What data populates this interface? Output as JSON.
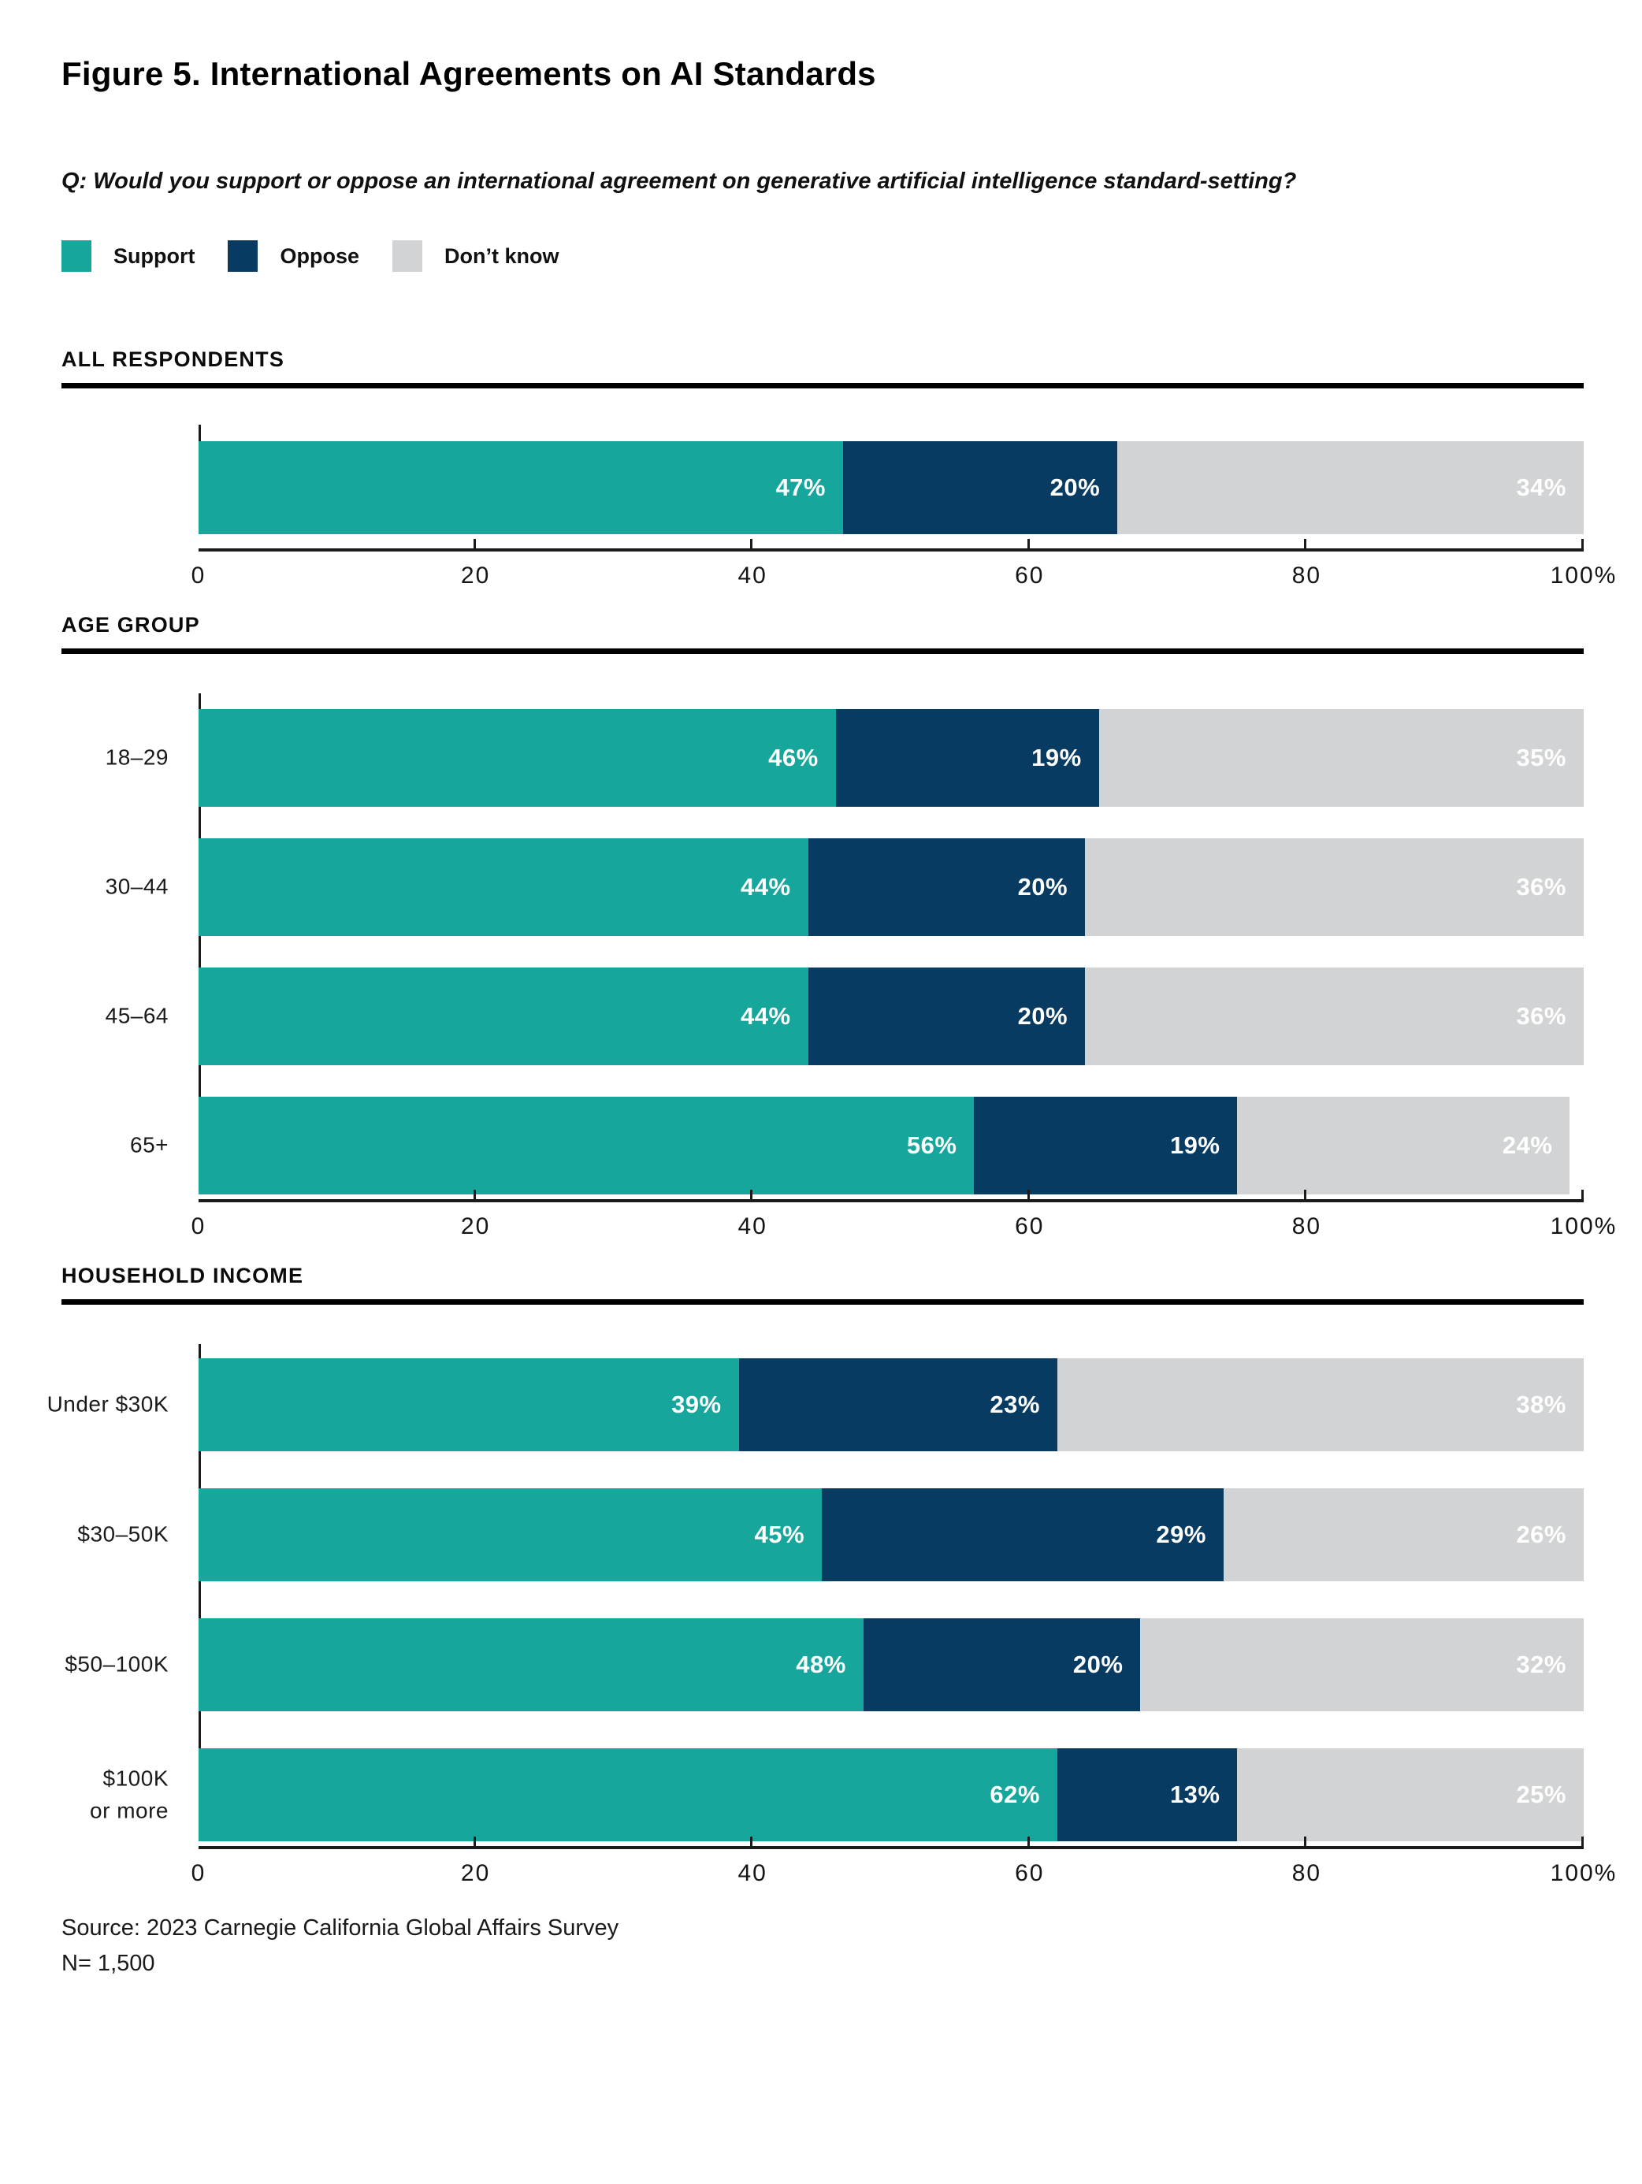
{
  "title": "Figure 5. International Agreements on AI Standards",
  "question": "Q: Would you support or oppose an international agreement on generative artificial intelligence standard-setting?",
  "legend": [
    {
      "label": "Support",
      "color": "#16A69C"
    },
    {
      "label": "Oppose",
      "color": "#073B62"
    },
    {
      "label": "Don’t know",
      "color": "#D1D3D4"
    }
  ],
  "colors": {
    "support": "#16A69C",
    "oppose": "#073B62",
    "dont_know": "#D1D3D4",
    "rule": "#000000",
    "axis": "#1B1B1B"
  },
  "source": {
    "line1": "Source: 2023 Carnegie California Global Affairs Survey",
    "line2": "N= 1,500"
  },
  "chart_data": [
    {
      "type": "bar",
      "stacked": true,
      "orientation": "horizontal",
      "section": "ALL RESPONDENTS",
      "categories": [
        ""
      ],
      "series": [
        {
          "name": "Support",
          "values": [
            47
          ]
        },
        {
          "name": "Oppose",
          "values": [
            20
          ]
        },
        {
          "name": "Don't know",
          "values": [
            34
          ]
        }
      ],
      "xlim": [
        0,
        100
      ],
      "ticks": [
        0,
        20,
        40,
        60,
        80,
        100
      ],
      "tick_labels": [
        "0",
        "20",
        "40",
        "60",
        "80",
        "100%"
      ],
      "grid": false,
      "value_labels": "inside-right, white, bold"
    },
    {
      "type": "bar",
      "stacked": true,
      "orientation": "horizontal",
      "section": "AGE GROUP",
      "categories": [
        "18–29",
        "30–44",
        "45–64",
        "65+"
      ],
      "series": [
        {
          "name": "Support",
          "values": [
            46,
            44,
            44,
            56
          ]
        },
        {
          "name": "Oppose",
          "values": [
            19,
            20,
            20,
            19
          ]
        },
        {
          "name": "Don't know",
          "values": [
            35,
            36,
            36,
            24
          ]
        }
      ],
      "xlim": [
        0,
        100
      ],
      "ticks": [
        0,
        20,
        40,
        60,
        80,
        100
      ],
      "tick_labels": [
        "0",
        "20",
        "40",
        "60",
        "80",
        "100%"
      ],
      "grid": false,
      "value_labels": "inside-right, white, bold"
    },
    {
      "type": "bar",
      "stacked": true,
      "orientation": "horizontal",
      "section": "HOUSEHOLD INCOME",
      "categories": [
        "Under $30K",
        "$30–50K",
        "$50–100K",
        "$100K\nor more"
      ],
      "series": [
        {
          "name": "Support",
          "values": [
            39,
            45,
            48,
            62
          ]
        },
        {
          "name": "Oppose",
          "values": [
            23,
            29,
            20,
            13
          ]
        },
        {
          "name": "Don't know",
          "values": [
            38,
            26,
            32,
            25
          ]
        }
      ],
      "xlim": [
        0,
        100
      ],
      "ticks": [
        0,
        20,
        40,
        60,
        80,
        100
      ],
      "tick_labels": [
        "0",
        "20",
        "40",
        "60",
        "80",
        "100%"
      ],
      "grid": false,
      "value_labels": "inside-right, white, bold"
    }
  ]
}
